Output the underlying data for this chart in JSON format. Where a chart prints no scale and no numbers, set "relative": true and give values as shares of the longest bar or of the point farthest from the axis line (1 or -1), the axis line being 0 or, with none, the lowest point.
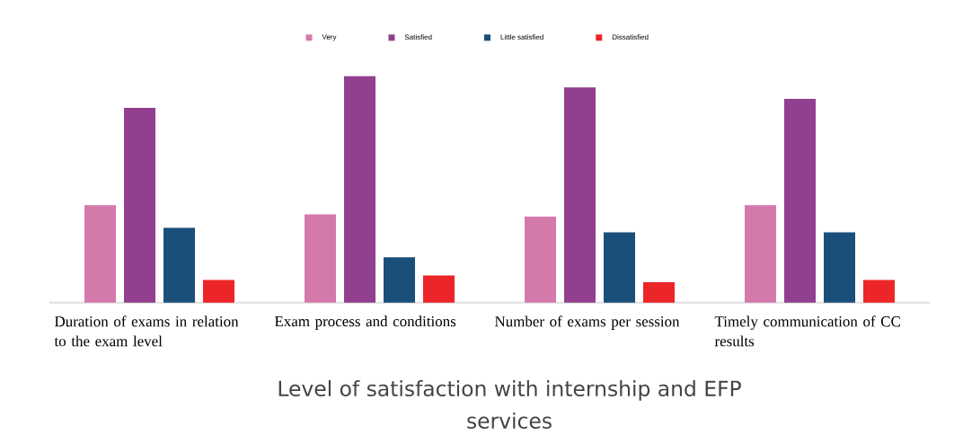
{
  "chart_data": {
    "type": "bar",
    "title": "Level of satisfaction with internship and EFP services",
    "categories": [
      "Duration of exams in relation to the exam level",
      "Exam process and conditions",
      "Number of exams per session",
      "Timely communication of CC results"
    ],
    "relative": true,
    "legend": "top",
    "series": [
      {
        "name": "Very",
        "color": "#d47aab",
        "values": [
          0.43,
          0.39,
          0.38,
          0.43
        ]
      },
      {
        "name": "Satisfied",
        "color": "#913f8e",
        "values": [
          0.86,
          1,
          0.95,
          0.9
        ]
      },
      {
        "name": "Little satisfied",
        "color": "#1a4f7a",
        "values": [
          0.33,
          0.2,
          0.31,
          0.31
        ]
      },
      {
        "name": "Dissatisfied",
        "color": "#ec2528",
        "values": [
          0.1,
          0.12,
          0.09,
          0.1
        ]
      }
    ]
  }
}
